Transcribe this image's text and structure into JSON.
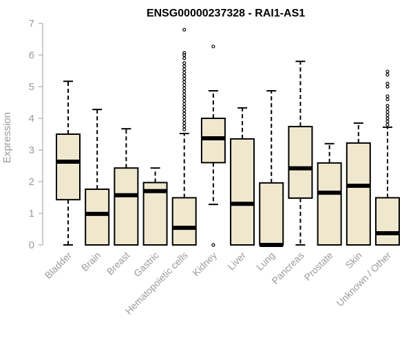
{
  "chart_data": {
    "type": "box",
    "title": "ENSG00000237328 - RAI1-AS1",
    "xlabel": "",
    "ylabel": "Expression",
    "ylim": [
      0,
      7
    ],
    "yticks": [
      0,
      1,
      2,
      3,
      4,
      5,
      6,
      7
    ],
    "grid": false,
    "colors": {
      "box_fill": "#efe8cf",
      "stroke": "#000000",
      "axis_text": "#9a9a9a"
    },
    "categories": [
      "Bladder",
      "Brain",
      "Breast",
      "Gastric",
      "Hematopoietic cells",
      "Kidney",
      "Liver",
      "Lung",
      "Pancreas",
      "Prostate",
      "Skin",
      "Unknown / Other"
    ],
    "boxes": [
      {
        "category": "Bladder",
        "min": 0,
        "q1": 1.43,
        "median": 2.63,
        "q3": 3.5,
        "max": 5.17,
        "outliers": []
      },
      {
        "category": "Brain",
        "min": 0,
        "q1": 0,
        "median": 0.98,
        "q3": 1.76,
        "max": 4.28,
        "outliers": []
      },
      {
        "category": "Breast",
        "min": 0,
        "q1": 0,
        "median": 1.57,
        "q3": 2.43,
        "max": 3.67,
        "outliers": []
      },
      {
        "category": "Gastric",
        "min": 0,
        "q1": 0,
        "median": 1.7,
        "q3": 1.97,
        "max": 2.43,
        "outliers": []
      },
      {
        "category": "Hematopoietic cells",
        "min": 0,
        "q1": 0,
        "median": 0.54,
        "q3": 1.49,
        "max": 3.52,
        "outliers": [
          3.65,
          3.75,
          3.85,
          3.95,
          4.05,
          4.15,
          4.25,
          4.35,
          4.45,
          4.55,
          4.65,
          4.75,
          4.85,
          4.95,
          5.05,
          5.15,
          5.25,
          5.35,
          5.45,
          5.55,
          5.65,
          5.75,
          5.9,
          6.0,
          6.07,
          6.8
        ]
      },
      {
        "category": "Kidney",
        "min": 1.28,
        "q1": 2.6,
        "median": 3.37,
        "q3": 4.0,
        "max": 4.87,
        "outliers": [
          6.27,
          0
        ]
      },
      {
        "category": "Liver",
        "min": 0,
        "q1": 0,
        "median": 1.3,
        "q3": 3.35,
        "max": 4.33,
        "outliers": []
      },
      {
        "category": "Lung",
        "min": 0,
        "q1": 0,
        "median": 0,
        "q3": 1.96,
        "max": 4.87,
        "outliers": []
      },
      {
        "category": "Pancreas",
        "min": 0,
        "q1": 1.48,
        "median": 2.42,
        "q3": 3.74,
        "max": 5.8,
        "outliers": []
      },
      {
        "category": "Prostate",
        "min": 0,
        "q1": 0,
        "median": 1.65,
        "q3": 2.59,
        "max": 3.2,
        "outliers": []
      },
      {
        "category": "Skin",
        "min": 0,
        "q1": 0,
        "median": 1.87,
        "q3": 3.22,
        "max": 3.85,
        "outliers": []
      },
      {
        "category": "Unknown / Other",
        "min": 0,
        "q1": 0,
        "median": 0.37,
        "q3": 1.49,
        "max": 3.72,
        "outliers": [
          3.8,
          3.9,
          4.0,
          4.1,
          4.2,
          4.3,
          4.4,
          4.6,
          4.7,
          5.0,
          5.1,
          5.38,
          5.48
        ]
      }
    ]
  }
}
